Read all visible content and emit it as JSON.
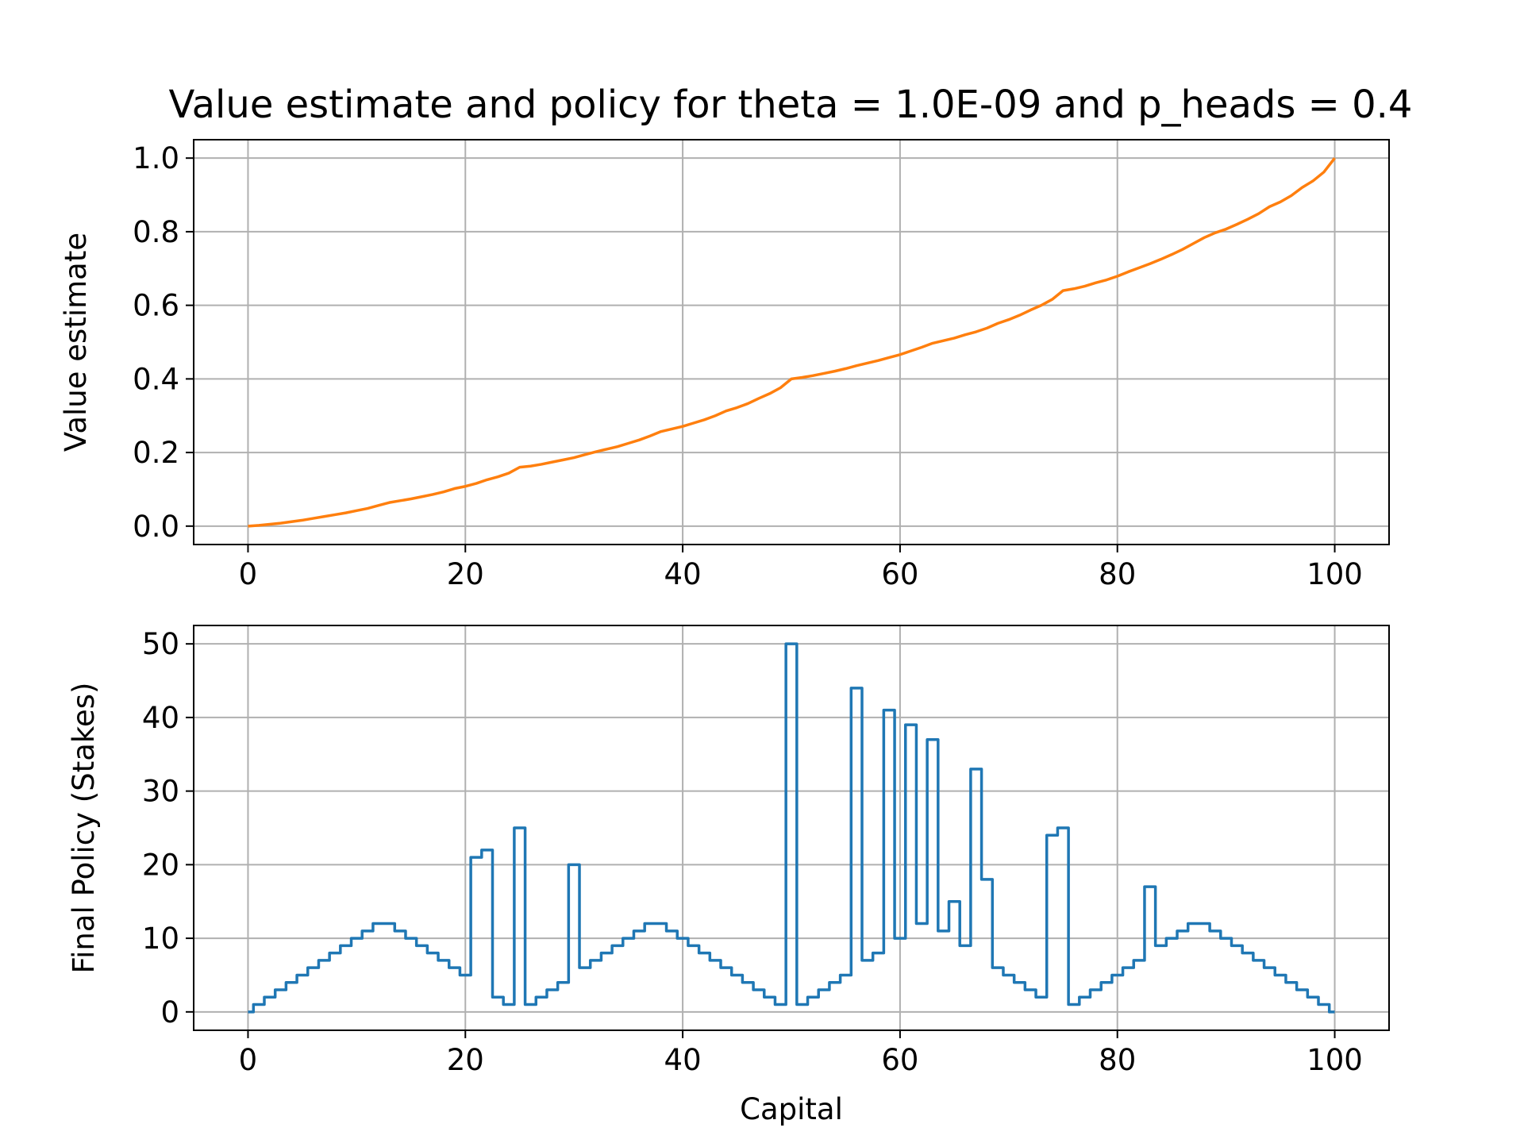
{
  "title": "Value estimate and policy for theta = 1.0E-09 and p_heads = 0.4",
  "colors": {
    "value_line": "#ff7f0e",
    "policy_line": "#1f77b4",
    "grid": "#b0b0b0",
    "axes": "#000000"
  },
  "chart_data": [
    {
      "type": "line",
      "ylabel": "Value estimate",
      "xlabel": "",
      "xlim": [
        -5,
        105
      ],
      "ylim": [
        -0.05,
        1.05
      ],
      "xticks": [
        0,
        20,
        40,
        60,
        80,
        100
      ],
      "yticks": [
        0.0,
        0.2,
        0.4,
        0.6,
        0.8,
        1.0
      ],
      "ytick_labels": [
        "0.0",
        "0.2",
        "0.4",
        "0.6",
        "0.8",
        "1.0"
      ],
      "grid": true,
      "series": [
        {
          "x": [
            0,
            1,
            2,
            3,
            4,
            5,
            6,
            7,
            8,
            9,
            10,
            11,
            12,
            13,
            14,
            15,
            16,
            17,
            18,
            19,
            20,
            21,
            22,
            23,
            24,
            25,
            26,
            27,
            28,
            29,
            30,
            31,
            32,
            33,
            34,
            35,
            36,
            37,
            38,
            39,
            40,
            41,
            42,
            43,
            44,
            45,
            46,
            47,
            48,
            49,
            50,
            51,
            52,
            53,
            54,
            55,
            56,
            57,
            58,
            59,
            60,
            61,
            62,
            63,
            64,
            65,
            66,
            67,
            68,
            69,
            70,
            71,
            72,
            73,
            74,
            75,
            76,
            77,
            78,
            79,
            80,
            81,
            82,
            83,
            84,
            85,
            86,
            87,
            88,
            89,
            90,
            91,
            92,
            93,
            94,
            95,
            96,
            97,
            98,
            99,
            100
          ],
          "y": [
            0.0,
            0.002,
            0.005,
            0.008,
            0.012,
            0.016,
            0.021,
            0.026,
            0.031,
            0.036,
            0.042,
            0.048,
            0.056,
            0.064,
            0.069,
            0.074,
            0.08,
            0.086,
            0.093,
            0.102,
            0.108,
            0.116,
            0.126,
            0.134,
            0.144,
            0.16,
            0.163,
            0.168,
            0.174,
            0.18,
            0.186,
            0.194,
            0.202,
            0.209,
            0.216,
            0.225,
            0.234,
            0.245,
            0.257,
            0.264,
            0.271,
            0.28,
            0.289,
            0.3,
            0.313,
            0.322,
            0.333,
            0.347,
            0.36,
            0.376,
            0.4,
            0.404,
            0.409,
            0.415,
            0.421,
            0.428,
            0.436,
            0.443,
            0.45,
            0.458,
            0.466,
            0.476,
            0.486,
            0.497,
            0.504,
            0.511,
            0.52,
            0.528,
            0.538,
            0.551,
            0.561,
            0.573,
            0.587,
            0.6,
            0.616,
            0.64,
            0.645,
            0.652,
            0.661,
            0.669,
            0.679,
            0.691,
            0.702,
            0.713,
            0.725,
            0.738,
            0.752,
            0.768,
            0.784,
            0.797,
            0.807,
            0.82,
            0.834,
            0.849,
            0.868,
            0.881,
            0.898,
            0.92,
            0.938,
            0.962,
            1.0
          ]
        }
      ]
    },
    {
      "type": "line",
      "drawstyle": "steps-mid",
      "ylabel": "Final Policy (Stakes)",
      "xlabel": "Capital",
      "xlim": [
        -5,
        105
      ],
      "ylim": [
        -2.5,
        52.5
      ],
      "xticks": [
        0,
        20,
        40,
        60,
        80,
        100
      ],
      "yticks": [
        0,
        10,
        20,
        30,
        40,
        50
      ],
      "grid": true,
      "series": [
        {
          "x": [
            0,
            1,
            2,
            3,
            4,
            5,
            6,
            7,
            8,
            9,
            10,
            11,
            12,
            13,
            14,
            15,
            16,
            17,
            18,
            19,
            20,
            21,
            22,
            23,
            24,
            25,
            26,
            27,
            28,
            29,
            30,
            31,
            32,
            33,
            34,
            35,
            36,
            37,
            38,
            39,
            40,
            41,
            42,
            43,
            44,
            45,
            46,
            47,
            48,
            49,
            50,
            51,
            52,
            53,
            54,
            55,
            56,
            57,
            58,
            59,
            60,
            61,
            62,
            63,
            64,
            65,
            66,
            67,
            68,
            69,
            70,
            71,
            72,
            73,
            74,
            75,
            76,
            77,
            78,
            79,
            80,
            81,
            82,
            83,
            84,
            85,
            86,
            87,
            88,
            89,
            90,
            91,
            92,
            93,
            94,
            95,
            96,
            97,
            98,
            99,
            100
          ],
          "y": [
            0,
            1,
            2,
            3,
            4,
            5,
            6,
            7,
            8,
            9,
            10,
            11,
            12,
            12,
            11,
            10,
            9,
            8,
            7,
            6,
            5,
            21,
            22,
            2,
            1,
            25,
            1,
            2,
            3,
            4,
            20,
            6,
            7,
            8,
            9,
            10,
            11,
            12,
            12,
            11,
            10,
            9,
            8,
            7,
            6,
            5,
            4,
            3,
            2,
            1,
            50,
            1,
            2,
            3,
            4,
            5,
            44,
            7,
            8,
            41,
            10,
            39,
            12,
            37,
            11,
            15,
            9,
            33,
            18,
            6,
            5,
            4,
            3,
            2,
            24,
            25,
            1,
            2,
            3,
            4,
            5,
            6,
            7,
            17,
            9,
            10,
            11,
            12,
            12,
            11,
            10,
            9,
            8,
            7,
            6,
            5,
            4,
            3,
            2,
            1,
            0
          ]
        }
      ]
    }
  ]
}
